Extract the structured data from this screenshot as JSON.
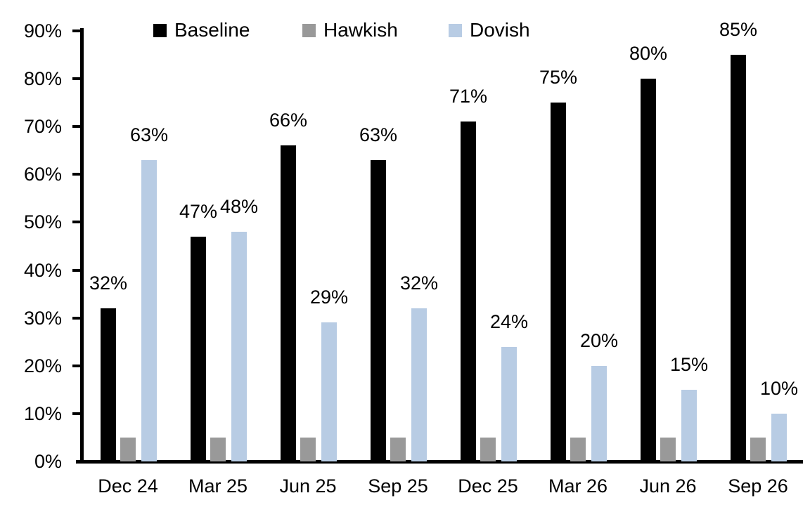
{
  "chart_data": {
    "type": "bar",
    "title": "",
    "xlabel": "",
    "ylabel": "",
    "categories": [
      "Dec 24",
      "Mar 25",
      "Jun 25",
      "Sep 25",
      "Dec 25",
      "Mar 26",
      "Jun 26",
      "Sep 26"
    ],
    "series": [
      {
        "name": "Baseline",
        "color": "#000000",
        "values": [
          32,
          47,
          66,
          63,
          71,
          75,
          80,
          85
        ],
        "data_labels": true
      },
      {
        "name": "Hawkish",
        "color": "#999999",
        "values": [
          5,
          5,
          5,
          5,
          5,
          5,
          5,
          5
        ],
        "data_labels": false
      },
      {
        "name": "Dovish",
        "color": "#B8CCE4",
        "values": [
          63,
          48,
          29,
          32,
          24,
          20,
          15,
          10
        ],
        "data_labels": true
      }
    ],
    "data_label_format": "percent",
    "y_ticks": [
      0,
      10,
      20,
      30,
      40,
      50,
      60,
      70,
      80,
      90
    ],
    "y_tick_format": "percent",
    "ylim": [
      0,
      90
    ],
    "grid": false,
    "legend_position": "top"
  },
  "colors": {
    "background": "#ffffff",
    "axis": "#000000",
    "text": "#000000"
  }
}
